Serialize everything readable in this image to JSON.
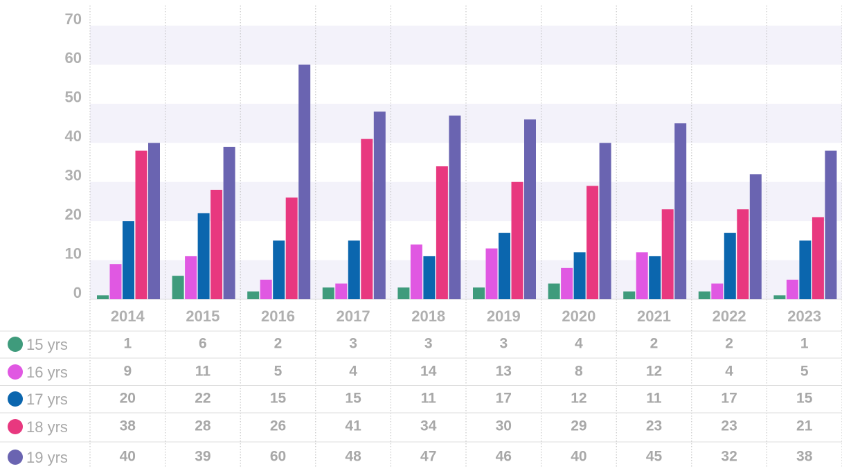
{
  "chart_data": {
    "type": "bar",
    "categories": [
      "2014",
      "2015",
      "2016",
      "2017",
      "2018",
      "2019",
      "2020",
      "2021",
      "2022",
      "2023"
    ],
    "series": [
      {
        "name": "15 yrs",
        "color": "#3f9b7c",
        "values": [
          1,
          6,
          2,
          3,
          3,
          3,
          4,
          2,
          2,
          1
        ]
      },
      {
        "name": "16 yrs",
        "color": "#e058e2",
        "values": [
          9,
          11,
          5,
          4,
          14,
          13,
          8,
          12,
          4,
          5
        ]
      },
      {
        "name": "17 yrs",
        "color": "#0b66ae",
        "values": [
          20,
          22,
          15,
          15,
          11,
          17,
          12,
          11,
          17,
          15
        ]
      },
      {
        "name": "18 yrs",
        "color": "#e8387f",
        "values": [
          38,
          28,
          26,
          41,
          34,
          30,
          29,
          23,
          23,
          21
        ]
      },
      {
        "name": "19 yrs",
        "color": "#6a64b1",
        "values": [
          40,
          39,
          60,
          48,
          47,
          46,
          40,
          45,
          32,
          38
        ]
      }
    ],
    "ylim": [
      0,
      70
    ],
    "yticks": [
      0,
      10,
      20,
      30,
      40,
      50,
      60,
      70
    ],
    "grid": true
  }
}
